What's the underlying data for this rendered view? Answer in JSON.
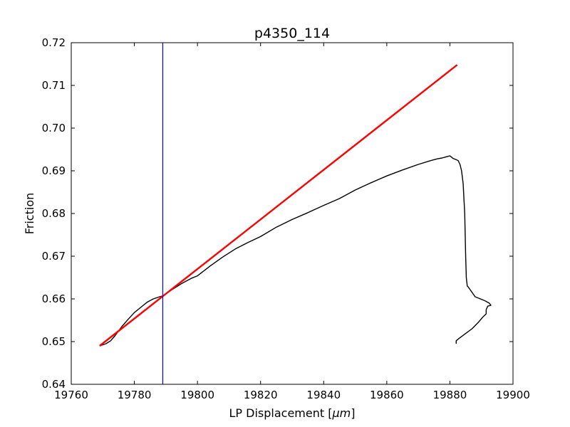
{
  "chart_data": {
    "type": "line",
    "title": "p4350_114",
    "xlabel": "LP Displacement [",
    "xlabel_unit": "μm",
    "xlabel_close": "]",
    "ylabel": "Friction",
    "xlim": [
      19760,
      19900
    ],
    "ylim": [
      0.64,
      0.72
    ],
    "xticks": [
      19760,
      19780,
      19800,
      19820,
      19840,
      19860,
      19880,
      19900
    ],
    "yticks": [
      0.64,
      0.65,
      0.66,
      0.67,
      0.68,
      0.69,
      0.7,
      0.71,
      0.72
    ],
    "xtick_labels": [
      "19760",
      "19780",
      "19800",
      "19820",
      "19840",
      "19860",
      "19880",
      "19900"
    ],
    "ytick_labels": [
      "0.64",
      "0.65",
      "0.66",
      "0.67",
      "0.68",
      "0.69",
      "0.70",
      "0.71",
      "0.72"
    ],
    "grid": false,
    "vline": {
      "x": 19789.0,
      "color": "#0000ff"
    },
    "series": [
      {
        "color": "#000000",
        "style": "thin",
        "x": [
          19769.0,
          19771.0,
          19772.5,
          19774.0,
          19776.0,
          19778.0,
          19780.0,
          19782.0,
          19784.0,
          19786.0,
          19788.0,
          19789.0,
          19792.0,
          19795.0,
          19798.0,
          19800.0,
          19804.0,
          19808.0,
          19812.0,
          19816.0,
          19820.0,
          19825.0,
          19830.0,
          19835.0,
          19840.0,
          19845.0,
          19850.0,
          19855.0,
          19860.0,
          19865.0,
          19870.0,
          19874.0,
          19876.0,
          19877.5,
          19878.5,
          19879.5,
          19880.0,
          19881.0,
          19882.0,
          19882.6,
          19883.2,
          19883.7,
          19884.2,
          19884.7,
          19885.0,
          19885.2,
          19885.5,
          19885.8,
          19888.0,
          19891.0,
          19892.5,
          19893.0,
          19892.0,
          19891.5,
          19891.5,
          19890.5,
          19889.0,
          19887.0,
          19885.0,
          19883.0,
          19882.0,
          19882.0
        ],
        "y": [
          0.649,
          0.6495,
          0.6502,
          0.6515,
          0.6535,
          0.6552,
          0.6568,
          0.658,
          0.6592,
          0.66,
          0.6605,
          0.6607,
          0.6622,
          0.6636,
          0.6648,
          0.6654,
          0.6677,
          0.6698,
          0.6717,
          0.6732,
          0.6746,
          0.6768,
          0.6786,
          0.6802,
          0.6819,
          0.6835,
          0.6855,
          0.6872,
          0.6888,
          0.6902,
          0.6915,
          0.6924,
          0.6928,
          0.693,
          0.6932,
          0.6934,
          0.6935,
          0.6929,
          0.6926,
          0.6924,
          0.6915,
          0.69,
          0.687,
          0.68,
          0.67,
          0.665,
          0.663,
          0.6628,
          0.6605,
          0.6596,
          0.659,
          0.6585,
          0.6583,
          0.6575,
          0.6565,
          0.6558,
          0.6545,
          0.653,
          0.6519,
          0.6508,
          0.6502,
          0.6495
        ]
      },
      {
        "color": "#ff0000",
        "style": "thick",
        "x": [
          19769.0,
          19882.3
        ],
        "y": [
          0.649,
          0.7148
        ]
      }
    ]
  }
}
